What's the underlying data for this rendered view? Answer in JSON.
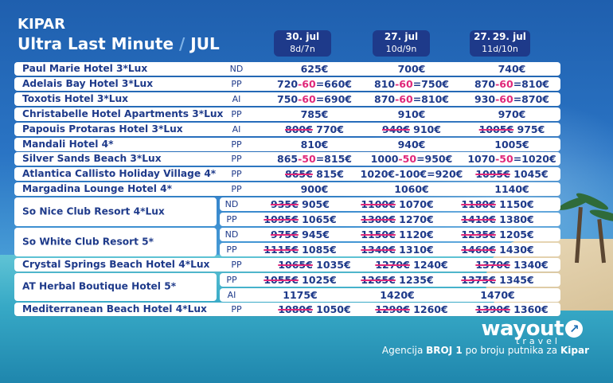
{
  "title": {
    "line1": "KIPAR",
    "line2": "Ultra Last Minute",
    "month": "JUL"
  },
  "columns": [
    {
      "date": "30. jul",
      "nights": "8d/7n"
    },
    {
      "date": "27. jul",
      "nights": "10d/9n"
    },
    {
      "date": "27. 29. jul",
      "nights": "11d/10n"
    }
  ],
  "rows": [
    {
      "hotel": "Paul Marie Hotel 3*Lux",
      "board": "ND",
      "p": [
        "625€",
        "700€",
        "740€"
      ]
    },
    {
      "hotel": "Adelais Bay Hotel 3*Lux",
      "board": "PP",
      "p": [
        [
          "720",
          "-60",
          "=660€"
        ],
        [
          "810",
          "-60",
          "=750€"
        ],
        [
          "870",
          "-60",
          "=810€"
        ]
      ]
    },
    {
      "hotel": "Toxotis Hotel 3*Lux",
      "board": "AI",
      "p": [
        [
          "750",
          "-60",
          "=690€"
        ],
        [
          "870",
          "-60",
          "=810€"
        ],
        [
          "930",
          "-60",
          "=870€"
        ]
      ]
    },
    {
      "hotel": "Christabelle Hotel Apartments 3*Lux",
      "board": "PP",
      "p": [
        "785€",
        "910€",
        "970€"
      ]
    },
    {
      "hotel": "Papouis Protaras Hotel 3*Lux",
      "board": "AI",
      "p": [
        [
          "800€",
          "770€"
        ],
        [
          "940€",
          "910€"
        ],
        [
          "1005€",
          "975€"
        ]
      ]
    },
    {
      "hotel": "Mandali Hotel 4*",
      "board": "PP",
      "p": [
        "810€",
        "940€",
        "1005€"
      ]
    },
    {
      "hotel": "Silver Sands Beach 3*Lux",
      "board": "PP",
      "p": [
        [
          "865",
          "-50",
          "=815€"
        ],
        [
          "1000",
          "-50",
          "=950€"
        ],
        [
          "1070",
          "-50",
          "=1020€"
        ]
      ]
    },
    {
      "hotel": "Atlantica Callisto Holiday Village 4*",
      "board": "PP",
      "p": [
        [
          "865€",
          "815€"
        ],
        "1020€-100€=920€",
        [
          "1095€",
          "1045€"
        ]
      ]
    },
    {
      "hotel": "Margadina Lounge Hotel 4*",
      "board": "PP",
      "p": [
        "900€",
        "1060€",
        "1140€"
      ]
    }
  ],
  "groups": [
    {
      "hotel": "So Nice Club Resort 4*Lux",
      "sub": [
        {
          "board": "ND",
          "p": [
            [
              "935€",
              "905€"
            ],
            [
              "1100€",
              "1070€"
            ],
            [
              "1180€",
              "1150€"
            ]
          ]
        },
        {
          "board": "PP",
          "p": [
            [
              "1095€",
              "1065€"
            ],
            [
              "1300€",
              "1270€"
            ],
            [
              "1410€",
              "1380€"
            ]
          ]
        }
      ]
    },
    {
      "hotel": "So White Club Resort 5*",
      "sub": [
        {
          "board": "ND",
          "p": [
            [
              "975€",
              "945€"
            ],
            [
              "1150€",
              "1120€"
            ],
            [
              "1235€",
              "1205€"
            ]
          ]
        },
        {
          "board": "PP",
          "p": [
            [
              "1115€",
              "1085€"
            ],
            [
              "1340€",
              "1310€"
            ],
            [
              "1460€",
              "1430€"
            ]
          ]
        }
      ]
    }
  ],
  "rows2": [
    {
      "hotel": "Crystal Springs Beach Hotel 4*Lux",
      "board": "PP",
      "p": [
        [
          "1065€",
          "1035€"
        ],
        [
          "1270€",
          "1240€"
        ],
        [
          "1370€",
          "1340€"
        ]
      ]
    }
  ],
  "groups2": [
    {
      "hotel": "AT Herbal Boutique Hotel 5*",
      "sub": [
        {
          "board": "PP",
          "p": [
            [
              "1055€",
              "1025€"
            ],
            [
              "1265€",
              "1235€"
            ],
            [
              "1375€",
              "1345€"
            ]
          ]
        },
        {
          "board": "AI",
          "p": [
            "1175€",
            "1420€",
            "1470€"
          ]
        }
      ]
    }
  ],
  "rows3": [
    {
      "hotel": "Mediterranean Beach Hotel 4*Lux",
      "board": "PP",
      "p": [
        [
          "1080€",
          "1050€"
        ],
        [
          "1290€",
          "1260€"
        ],
        [
          "1390€",
          "1360€"
        ]
      ]
    }
  ],
  "logo": {
    "main": "wayout",
    "sub": "travel"
  },
  "tagline": {
    "pre": "Agencija ",
    "bold1": "BROJ 1",
    "mid": " po broju putnika za ",
    "bold2": "Kipar"
  },
  "colors": {
    "navy": "#1e3a8a",
    "pink": "#e0287a",
    "white": "#ffffff"
  }
}
